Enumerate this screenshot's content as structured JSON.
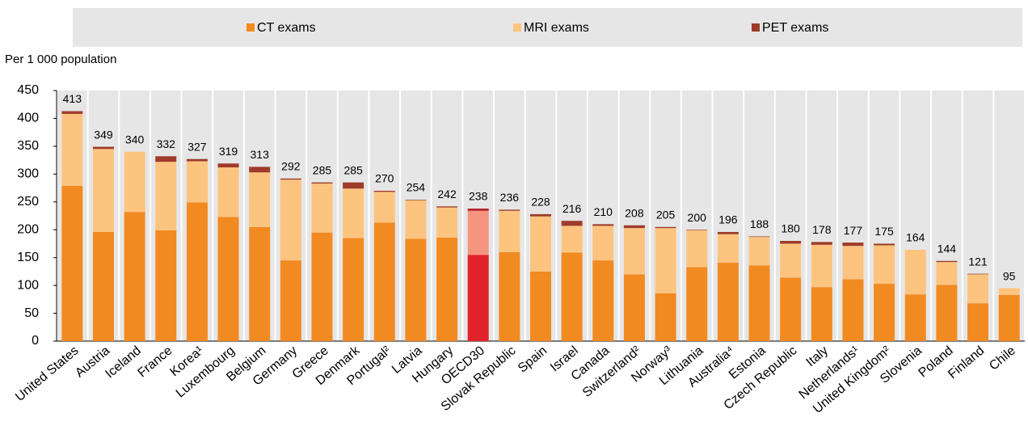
{
  "chart_data": {
    "type": "stacked_bar",
    "y_axis_label": "Per 1 000 population",
    "categories": [
      "United States",
      "Austria",
      "Iceland",
      "France",
      "Korea¹",
      "Luxembourg",
      "Belgium",
      "Germany",
      "Greece",
      "Denmark",
      "Portugal²",
      "Latvia",
      "Hungary",
      "OECD30",
      "Slovak Republic",
      "Spain",
      "Israel",
      "Canada",
      "Switzerland²",
      "Norway³",
      "Lithuania",
      "Australia⁴",
      "Estonia",
      "Czech Republic",
      "Italy",
      "Netherlands¹",
      "United Kingdom²",
      "Slovenia",
      "Poland",
      "Finland",
      "Chile"
    ],
    "series": [
      {
        "name": "CT exams",
        "color": "#f28a22",
        "highlight_color": "#e3232b",
        "values": [
          279,
          196,
          232,
          199,
          249,
          223,
          205,
          145,
          195,
          185,
          213,
          184,
          186,
          155,
          160,
          125,
          159,
          145,
          120,
          86,
          133,
          141,
          136,
          114,
          97,
          111,
          103,
          84,
          101,
          68,
          83
        ]
      },
      {
        "name": "MRI exams",
        "color": "#fdc480",
        "highlight_color": "#f59580",
        "values": [
          129,
          149,
          108,
          123,
          74,
          89,
          98,
          145,
          88,
          89,
          55,
          69,
          54,
          79,
          74,
          99,
          48,
          62,
          83,
          117,
          66,
          51,
          51,
          61,
          76,
          60,
          69,
          80,
          41,
          52,
          12
        ]
      },
      {
        "name": "PET exams",
        "color": "#9e3b2a",
        "highlight_color": "#b5202a",
        "values": [
          5,
          4,
          0,
          10,
          4,
          7,
          10,
          2,
          2,
          11,
          2,
          1,
          2,
          4,
          2,
          4,
          9,
          3,
          5,
          2,
          1,
          4,
          1,
          5,
          5,
          6,
          3,
          0,
          2,
          1,
          0
        ]
      }
    ],
    "totals": [
      413,
      349,
      340,
      332,
      327,
      319,
      313,
      292,
      285,
      285,
      270,
      254,
      242,
      238,
      236,
      228,
      216,
      210,
      208,
      205,
      200,
      196,
      188,
      180,
      178,
      177,
      175,
      164,
      144,
      121,
      95
    ],
    "highlight": "OECD30",
    "ylim": [
      0,
      450
    ],
    "yticks": [
      0,
      50,
      100,
      150,
      200,
      250,
      300,
      350,
      400,
      450
    ],
    "legend": "top"
  }
}
